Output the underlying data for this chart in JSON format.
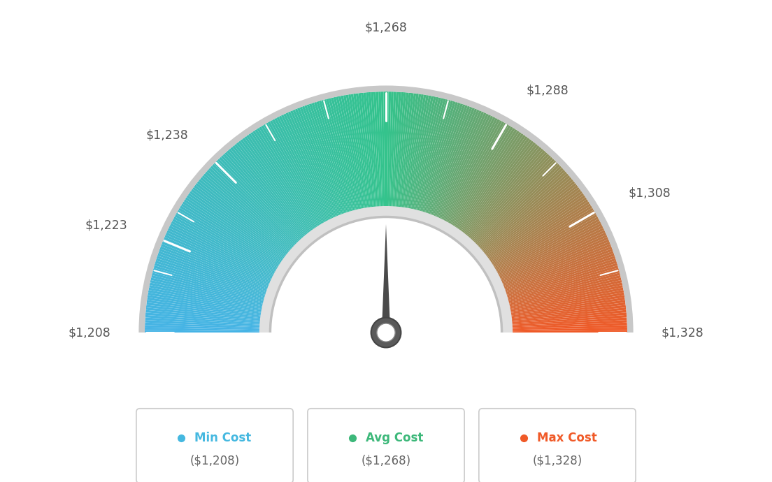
{
  "min_val": 1208,
  "max_val": 1328,
  "avg_val": 1268,
  "tick_labels": [
    "$1,208",
    "$1,223",
    "$1,238",
    "$1,268",
    "$1,288",
    "$1,308",
    "$1,328"
  ],
  "tick_values": [
    1208,
    1223,
    1238,
    1268,
    1288,
    1308,
    1328
  ],
  "color_blue": [
    70,
    180,
    230
  ],
  "color_green": [
    52,
    195,
    140
  ],
  "color_orange_red": [
    240,
    90,
    40
  ],
  "legend_min_color": "#45b8e0",
  "legend_avg_color": "#3db87a",
  "legend_max_color": "#f05a28",
  "background_color": "#ffffff",
  "outer_gray": "#c8c8c8",
  "inner_gray_light": "#e0e0e0",
  "inner_gray_dark": "#c0c0c0",
  "n_segments": 300,
  "outer_r": 1.0,
  "inner_r": 0.52,
  "label_r": 1.16,
  "needle_color": "#555555",
  "needle_hub_outer_color": "#606060",
  "needle_hub_inner_color": "#ffffff"
}
